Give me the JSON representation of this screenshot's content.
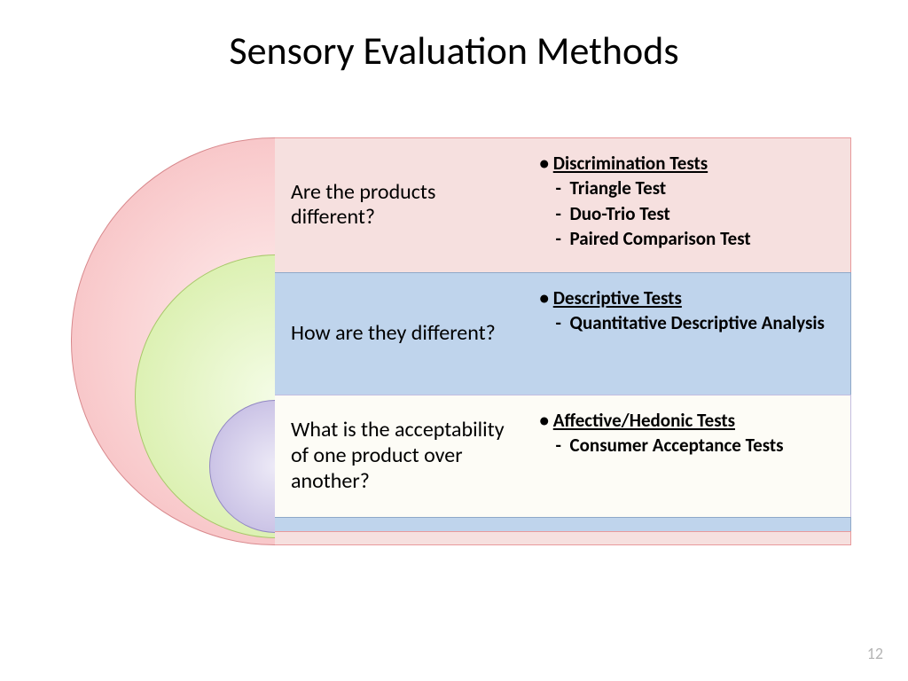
{
  "title": "Sensory Evaluation Methods",
  "page_number": "12",
  "colors": {
    "row1_bg": "#f6e0df",
    "row1_border": "#e89a9c",
    "row2_bg": "#bfd4ec",
    "row2_border": "#8fa8c8",
    "row3_bg": "#fdfcf6",
    "row3_border": "#c4bde0",
    "tail_blue_bg": "#bfd4ec",
    "tail_blue_border": "#8fa8c8",
    "tail_pink_bg": "#f6e0df",
    "tail_pink_border": "#e89a9c"
  },
  "rows": [
    {
      "question": "Are the products different?",
      "heading": "Discrimination Tests",
      "subs": [
        "Triangle Test",
        "Duo-Trio Test",
        "Paired Comparison Test"
      ]
    },
    {
      "question": "How are they different?",
      "heading": "Descriptive Tests",
      "subs": [
        "Quantitative Descriptive Analysis"
      ]
    },
    {
      "question": "What is the acceptability of one product over another?",
      "heading": "Affective/Hedonic Tests",
      "subs": [
        "Consumer Acceptance Tests"
      ]
    }
  ]
}
